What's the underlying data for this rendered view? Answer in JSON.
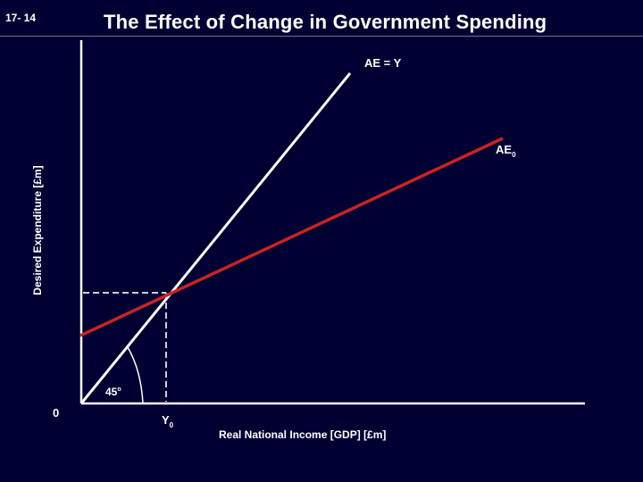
{
  "slide": {
    "number": "17- 14",
    "title": "The Effect of Change in Government Spending"
  },
  "diagram": {
    "y_axis_label": "Desired Expenditure [£m]",
    "x_axis_label": "Real National Income [GDP] [£m]",
    "origin_label": "0",
    "angle_label": "45",
    "angle_unit": "o",
    "line_45_label": "AE = Y",
    "ae_curve_label": {
      "main": "AE",
      "sub": "0"
    },
    "equilibrium_label": {
      "main": "Y",
      "sub": "0"
    },
    "colors": {
      "background": "#000033",
      "axes": "#ffffff",
      "line_45": "#ffffff",
      "ae_curve": "#cc2222",
      "guides": "#ccccdd"
    }
  }
}
